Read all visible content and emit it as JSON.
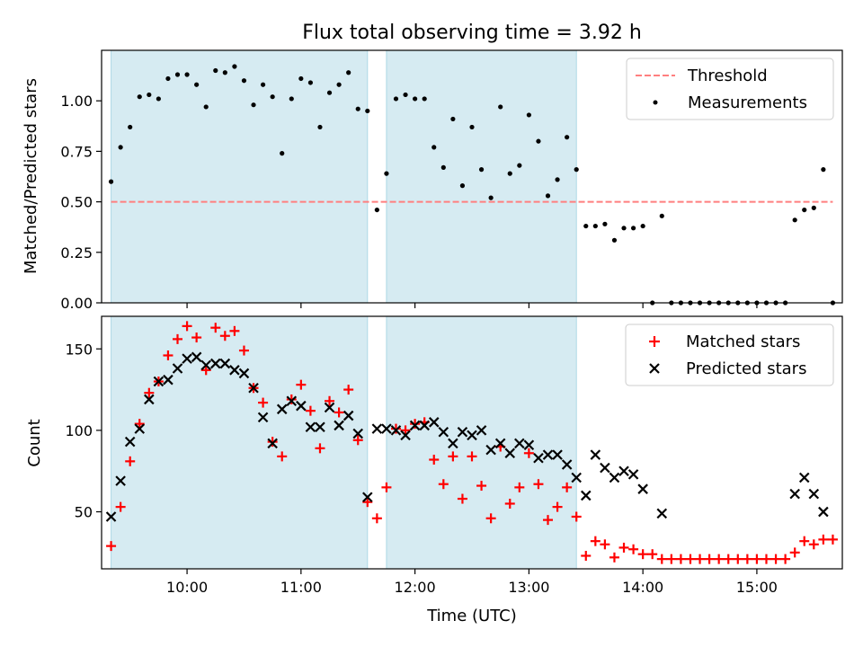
{
  "chart_data": [
    {
      "type": "scatter",
      "title": "Flux total observing time = 3.92 h",
      "xlabel": "",
      "ylabel": "Matched/Predicted stars",
      "ylim": [
        0,
        1.25
      ],
      "y_ticks": [
        "0.00",
        "0.25",
        "0.50",
        "0.75",
        "1.00"
      ],
      "y_tick_values": [
        0,
        0.25,
        0.5,
        0.75,
        1.0
      ],
      "x_range_hours": [
        9.25,
        15.75
      ],
      "legend_position": "top-right",
      "shaded_intervals": [
        [
          "09:20",
          "11:35"
        ],
        [
          "11:45",
          "13:25"
        ]
      ],
      "shade_color": "#add8e6",
      "threshold": {
        "name": "Threshold",
        "value": 0.5,
        "color": "#ff7f7f",
        "style": "dashed"
      },
      "series": [
        {
          "name": "Measurements",
          "color": "#000000",
          "marker": "dot",
          "points": [
            [
              "09:20",
              0.6
            ],
            [
              "09:25",
              0.77
            ],
            [
              "09:30",
              0.87
            ],
            [
              "09:35",
              1.02
            ],
            [
              "09:40",
              1.03
            ],
            [
              "09:45",
              1.01
            ],
            [
              "09:50",
              1.11
            ],
            [
              "09:55",
              1.13
            ],
            [
              "10:00",
              1.13
            ],
            [
              "10:05",
              1.08
            ],
            [
              "10:10",
              0.97
            ],
            [
              "10:15",
              1.15
            ],
            [
              "10:20",
              1.14
            ],
            [
              "10:25",
              1.17
            ],
            [
              "10:30",
              1.1
            ],
            [
              "10:35",
              0.98
            ],
            [
              "10:40",
              1.08
            ],
            [
              "10:45",
              1.02
            ],
            [
              "10:50",
              0.74
            ],
            [
              "10:55",
              1.01
            ],
            [
              "11:00",
              1.11
            ],
            [
              "11:05",
              1.09
            ],
            [
              "11:10",
              0.87
            ],
            [
              "11:15",
              1.04
            ],
            [
              "11:20",
              1.08
            ],
            [
              "11:25",
              1.14
            ],
            [
              "11:30",
              0.96
            ],
            [
              "11:35",
              0.95
            ],
            [
              "11:40",
              0.46
            ],
            [
              "11:45",
              0.64
            ],
            [
              "11:50",
              1.01
            ],
            [
              "11:55",
              1.03
            ],
            [
              "12:00",
              1.01
            ],
            [
              "12:05",
              1.01
            ],
            [
              "12:10",
              0.77
            ],
            [
              "12:15",
              0.67
            ],
            [
              "12:20",
              0.91
            ],
            [
              "12:25",
              0.58
            ],
            [
              "12:30",
              0.87
            ],
            [
              "12:35",
              0.66
            ],
            [
              "12:40",
              0.52
            ],
            [
              "12:45",
              0.97
            ],
            [
              "12:50",
              0.64
            ],
            [
              "12:55",
              0.68
            ],
            [
              "13:00",
              0.93
            ],
            [
              "13:05",
              0.8
            ],
            [
              "13:10",
              0.53
            ],
            [
              "13:15",
              0.61
            ],
            [
              "13:20",
              0.82
            ],
            [
              "13:25",
              0.66
            ],
            [
              "13:30",
              0.38
            ],
            [
              "13:35",
              0.38
            ],
            [
              "13:40",
              0.39
            ],
            [
              "13:45",
              0.31
            ],
            [
              "13:50",
              0.37
            ],
            [
              "13:55",
              0.37
            ],
            [
              "14:00",
              0.38
            ],
            [
              "14:05",
              0.0
            ],
            [
              "14:10",
              0.43
            ],
            [
              "14:15",
              0.0
            ],
            [
              "14:20",
              0.0
            ],
            [
              "14:25",
              0.0
            ],
            [
              "14:30",
              0.0
            ],
            [
              "14:35",
              0.0
            ],
            [
              "14:40",
              0.0
            ],
            [
              "14:45",
              0.0
            ],
            [
              "14:50",
              0.0
            ],
            [
              "14:55",
              0.0
            ],
            [
              "15:00",
              0.0
            ],
            [
              "15:05",
              0.0
            ],
            [
              "15:10",
              0.0
            ],
            [
              "15:15",
              0.0
            ],
            [
              "15:20",
              0.41
            ],
            [
              "15:25",
              0.46
            ],
            [
              "15:30",
              0.47
            ],
            [
              "15:35",
              0.66
            ],
            [
              "15:40",
              0.0
            ]
          ]
        }
      ]
    },
    {
      "type": "scatter",
      "title": "",
      "xlabel": "Time (UTC)",
      "ylabel": "Count",
      "ylim": [
        15,
        170
      ],
      "y_ticks": [
        "50",
        "100",
        "150"
      ],
      "y_tick_values": [
        50,
        100,
        150
      ],
      "x_ticks": [
        "10:00",
        "11:00",
        "12:00",
        "13:00",
        "14:00",
        "15:00"
      ],
      "x_tick_values": [
        "10:00",
        "11:00",
        "12:00",
        "13:00",
        "14:00",
        "15:00"
      ],
      "x_range_hours": [
        9.25,
        15.75
      ],
      "legend_position": "top-right",
      "shaded_intervals": [
        [
          "09:20",
          "11:35"
        ],
        [
          "11:45",
          "13:25"
        ]
      ],
      "shade_color": "#add8e6",
      "series": [
        {
          "name": "Matched stars",
          "color": "#ff0000",
          "marker": "plus",
          "points": [
            [
              "09:20",
              29
            ],
            [
              "09:25",
              53
            ],
            [
              "09:30",
              81
            ],
            [
              "09:35",
              104
            ],
            [
              "09:40",
              123
            ],
            [
              "09:45",
              130
            ],
            [
              "09:50",
              146
            ],
            [
              "09:55",
              156
            ],
            [
              "10:00",
              164
            ],
            [
              "10:05",
              157
            ],
            [
              "10:10",
              137
            ],
            [
              "10:15",
              163
            ],
            [
              "10:20",
              158
            ],
            [
              "10:25",
              161
            ],
            [
              "10:30",
              149
            ],
            [
              "10:35",
              126
            ],
            [
              "10:40",
              117
            ],
            [
              "10:45",
              93
            ],
            [
              "10:50",
              84
            ],
            [
              "10:55",
              119
            ],
            [
              "11:00",
              128
            ],
            [
              "11:05",
              112
            ],
            [
              "11:10",
              89
            ],
            [
              "11:15",
              118
            ],
            [
              "11:20",
              111
            ],
            [
              "11:25",
              125
            ],
            [
              "11:30",
              94
            ],
            [
              "11:35",
              56
            ],
            [
              "11:40",
              46
            ],
            [
              "11:45",
              65
            ],
            [
              "11:50",
              101
            ],
            [
              "11:55",
              100
            ],
            [
              "12:00",
              104
            ],
            [
              "12:05",
              105
            ],
            [
              "12:10",
              82
            ],
            [
              "12:15",
              67
            ],
            [
              "12:20",
              84
            ],
            [
              "12:25",
              58
            ],
            [
              "12:30",
              84
            ],
            [
              "12:35",
              66
            ],
            [
              "12:40",
              46
            ],
            [
              "12:45",
              90
            ],
            [
              "12:50",
              55
            ],
            [
              "12:55",
              65
            ],
            [
              "13:00",
              86
            ],
            [
              "13:05",
              67
            ],
            [
              "13:10",
              45
            ],
            [
              "13:15",
              53
            ],
            [
              "13:20",
              65
            ],
            [
              "13:25",
              47
            ],
            [
              "13:30",
              23
            ],
            [
              "13:35",
              32
            ],
            [
              "13:40",
              30
            ],
            [
              "13:45",
              22
            ],
            [
              "13:50",
              28
            ],
            [
              "13:55",
              27
            ],
            [
              "14:00",
              24
            ],
            [
              "14:05",
              24
            ],
            [
              "14:10",
              21
            ],
            [
              "14:15",
              21
            ],
            [
              "14:20",
              21
            ],
            [
              "14:25",
              21
            ],
            [
              "14:30",
              21
            ],
            [
              "14:35",
              21
            ],
            [
              "14:40",
              21
            ],
            [
              "14:45",
              21
            ],
            [
              "14:50",
              21
            ],
            [
              "14:55",
              21
            ],
            [
              "15:00",
              21
            ],
            [
              "15:05",
              21
            ],
            [
              "15:10",
              21
            ],
            [
              "15:15",
              21
            ],
            [
              "15:20",
              25
            ],
            [
              "15:25",
              32
            ],
            [
              "15:30",
              30
            ],
            [
              "15:35",
              33
            ],
            [
              "15:40",
              33
            ]
          ]
        },
        {
          "name": "Predicted stars",
          "color": "#000000",
          "marker": "x",
          "points": [
            [
              "09:20",
              47
            ],
            [
              "09:25",
              69
            ],
            [
              "09:30",
              93
            ],
            [
              "09:35",
              101
            ],
            [
              "09:40",
              119
            ],
            [
              "09:45",
              130
            ],
            [
              "09:50",
              131
            ],
            [
              "09:55",
              138
            ],
            [
              "10:00",
              144
            ],
            [
              "10:05",
              145
            ],
            [
              "10:10",
              140
            ],
            [
              "10:15",
              141
            ],
            [
              "10:20",
              141
            ],
            [
              "10:25",
              137
            ],
            [
              "10:30",
              135
            ],
            [
              "10:35",
              126
            ],
            [
              "10:40",
              108
            ],
            [
              "10:45",
              92
            ],
            [
              "10:50",
              113
            ],
            [
              "10:55",
              118
            ],
            [
              "11:00",
              115
            ],
            [
              "11:05",
              102
            ],
            [
              "11:10",
              102
            ],
            [
              "11:15",
              114
            ],
            [
              "11:20",
              103
            ],
            [
              "11:25",
              109
            ],
            [
              "11:30",
              98
            ],
            [
              "11:35",
              59
            ],
            [
              "11:40",
              101
            ],
            [
              "11:45",
              101
            ],
            [
              "11:50",
              100
            ],
            [
              "11:55",
              97
            ],
            [
              "12:00",
              103
            ],
            [
              "12:05",
              103
            ],
            [
              "12:10",
              105
            ],
            [
              "12:15",
              99
            ],
            [
              "12:20",
              92
            ],
            [
              "12:25",
              99
            ],
            [
              "12:30",
              97
            ],
            [
              "12:35",
              100
            ],
            [
              "12:40",
              88
            ],
            [
              "12:45",
              92
            ],
            [
              "12:50",
              86
            ],
            [
              "12:55",
              92
            ],
            [
              "13:00",
              91
            ],
            [
              "13:05",
              83
            ],
            [
              "13:10",
              85
            ],
            [
              "13:15",
              85
            ],
            [
              "13:20",
              79
            ],
            [
              "13:25",
              71
            ],
            [
              "13:30",
              60
            ],
            [
              "13:35",
              85
            ],
            [
              "13:40",
              77
            ],
            [
              "13:45",
              71
            ],
            [
              "13:50",
              75
            ],
            [
              "13:55",
              73
            ],
            [
              "14:00",
              64
            ],
            [
              "14:10",
              49
            ],
            [
              "15:20",
              61
            ],
            [
              "15:25",
              71
            ],
            [
              "15:30",
              61
            ],
            [
              "15:35",
              50
            ]
          ]
        }
      ]
    }
  ]
}
